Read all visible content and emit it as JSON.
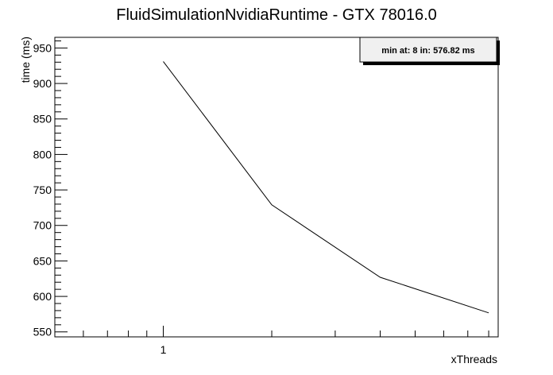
{
  "chart_data": {
    "type": "line",
    "title": "FluidSimulationNvidiaRuntime - GTX 78016.0",
    "xlabel": "xThreads",
    "ylabel": "time (ms)",
    "x_scale": "log2",
    "xlim": [
      0.5,
      8.5
    ],
    "ylim": [
      543,
      965
    ],
    "yticks": [
      550,
      600,
      650,
      700,
      750,
      800,
      850,
      900,
      950
    ],
    "xticks_labeled": [
      {
        "value": 1,
        "label": "1"
      }
    ],
    "grid": false,
    "series": [
      {
        "x": [
          1,
          2,
          4,
          8
        ],
        "values": [
          931,
          729,
          627,
          576.82
        ]
      }
    ],
    "annotation": "min at: 8 in: 576.82 ms"
  }
}
